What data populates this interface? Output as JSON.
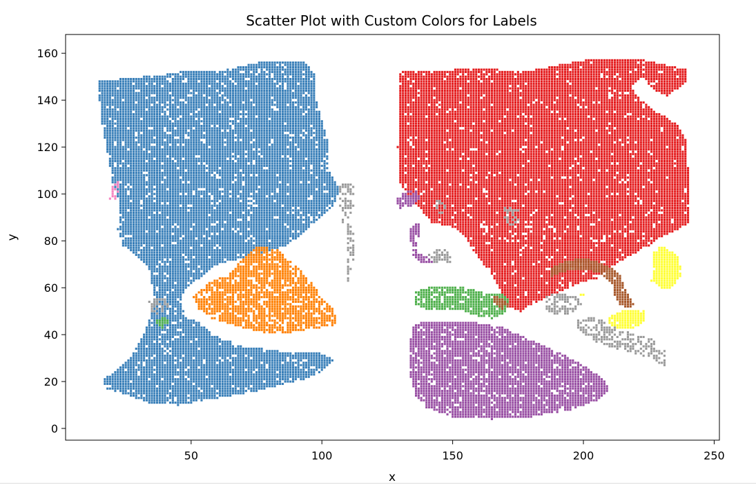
{
  "chart_data": {
    "type": "scatter",
    "title": "Scatter Plot with Custom Colors for Labels",
    "xlabel": "x",
    "ylabel": "y",
    "xlim": [
      2,
      252
    ],
    "ylim": [
      -5,
      168
    ],
    "xticks": [
      50,
      100,
      150,
      200,
      250
    ],
    "yticks": [
      0,
      20,
      40,
      60,
      80,
      100,
      120,
      140,
      160
    ],
    "grid": false,
    "legend": "none",
    "marker_spacing": 1,
    "series": [
      {
        "color": "#377eb8",
        "density": 0.93,
        "regions": [
          [
            [
              14,
              148
            ],
            [
              40,
              151
            ],
            [
              50,
              153
            ],
            [
              60,
              152
            ],
            [
              75,
              156
            ],
            [
              93,
              157
            ],
            [
              98,
              150
            ],
            [
              98,
              140
            ],
            [
              102,
              124
            ],
            [
              103,
              110
            ],
            [
              107,
              102
            ],
            [
              104,
              94
            ],
            [
              98,
              88
            ],
            [
              94,
              84
            ],
            [
              86,
              78
            ],
            [
              74,
              74
            ],
            [
              60,
              70
            ],
            [
              53,
              64
            ],
            [
              48,
              60
            ],
            [
              46,
              54
            ],
            [
              48,
              48
            ],
            [
              54,
              45
            ],
            [
              58,
              40
            ],
            [
              70,
              35
            ],
            [
              85,
              33
            ],
            [
              100,
              32
            ],
            [
              105,
              29
            ],
            [
              100,
              24
            ],
            [
              93,
              21
            ],
            [
              75,
              16
            ],
            [
              60,
              13
            ],
            [
              45,
              10
            ],
            [
              34,
              11
            ],
            [
              24,
              15
            ],
            [
              18,
              17
            ],
            [
              16,
              21
            ],
            [
              22,
              25
            ],
            [
              27,
              30
            ],
            [
              31,
              38
            ],
            [
              34,
              46
            ],
            [
              36,
              55
            ],
            [
              34,
              68
            ],
            [
              29,
              74
            ],
            [
              24,
              78
            ],
            [
              22,
              85
            ],
            [
              23,
              95
            ],
            [
              20,
              105
            ],
            [
              18,
              118
            ],
            [
              16,
              130
            ],
            [
              15,
              140
            ]
          ]
        ]
      },
      {
        "color": "#e41a1c",
        "density": 0.94,
        "regions": [
          [
            [
              130,
              152
            ],
            [
              150,
              153
            ],
            [
              160,
              154
            ],
            [
              176,
              152
            ],
            [
              186,
              154
            ],
            [
              205,
              158
            ],
            [
              220,
              158
            ],
            [
              232,
              155
            ],
            [
              240,
              153
            ],
            [
              239,
              147
            ],
            [
              232,
              142
            ],
            [
              226,
              145
            ],
            [
              223,
              150
            ],
            [
              218,
              146
            ],
            [
              222,
              140
            ],
            [
              228,
              135
            ],
            [
              236,
              130
            ],
            [
              240,
              122
            ],
            [
              240,
              112
            ],
            [
              241,
              96
            ],
            [
              241,
              88
            ],
            [
              236,
              85
            ],
            [
              230,
              82
            ],
            [
              225,
              78
            ],
            [
              220,
              75
            ],
            [
              212,
              70
            ],
            [
              205,
              64
            ],
            [
              198,
              62
            ],
            [
              188,
              57
            ],
            [
              180,
              53
            ],
            [
              176,
              50
            ],
            [
              170,
              53
            ],
            [
              168,
              60
            ],
            [
              165,
              66
            ],
            [
              162,
              70
            ],
            [
              158,
              76
            ],
            [
              155,
              82
            ],
            [
              150,
              86
            ],
            [
              142,
              88
            ],
            [
              136,
              96
            ],
            [
              130,
              104
            ],
            [
              129,
              120
            ],
            [
              130,
              140
            ]
          ]
        ]
      },
      {
        "color": "#ff7f00",
        "density": 0.82,
        "regions": [
          [
            [
              51,
              56
            ],
            [
              55,
              61
            ],
            [
              60,
              64
            ],
            [
              66,
              67
            ],
            [
              70,
              73
            ],
            [
              76,
              78
            ],
            [
              84,
              76
            ],
            [
              90,
              70
            ],
            [
              93,
              66
            ],
            [
              97,
              61
            ],
            [
              100,
              56
            ],
            [
              104,
              52
            ],
            [
              106,
              48
            ],
            [
              105,
              44
            ],
            [
              100,
              43
            ],
            [
              88,
              41
            ],
            [
              78,
              41
            ],
            [
              70,
              43
            ],
            [
              64,
              45
            ],
            [
              58,
              47
            ],
            [
              53,
              51
            ]
          ]
        ]
      },
      {
        "color": "#984ea3",
        "density": 0.9,
        "regions": [
          [
            [
              135,
              44
            ],
            [
              140,
              46
            ],
            [
              150,
              46
            ],
            [
              160,
              45
            ],
            [
              170,
              43
            ],
            [
              180,
              38
            ],
            [
              190,
              33
            ],
            [
              200,
              27
            ],
            [
              208,
              21
            ],
            [
              210,
              16
            ],
            [
              205,
              12
            ],
            [
              195,
              8
            ],
            [
              180,
              5
            ],
            [
              165,
              4
            ],
            [
              150,
              5
            ],
            [
              140,
              9
            ],
            [
              136,
              14
            ],
            [
              134,
              22
            ],
            [
              134,
              30
            ],
            [
              134,
              38
            ]
          ],
          [
            [
              134,
              86
            ],
            [
              137,
              88
            ],
            [
              138,
              83
            ],
            [
              136,
              80
            ],
            [
              137,
              75
            ],
            [
              141,
              73
            ],
            [
              143,
              70
            ],
            [
              138,
              71
            ],
            [
              135,
              74
            ],
            [
              134,
              80
            ]
          ],
          [
            [
              128,
              98
            ],
            [
              132,
              101
            ],
            [
              136,
              102
            ],
            [
              138,
              98
            ],
            [
              134,
              95
            ],
            [
              130,
              94
            ]
          ]
        ]
      },
      {
        "color": "#4daf4a",
        "density": 0.88,
        "regions": [
          [
            [
              135,
              58
            ],
            [
              140,
              60
            ],
            [
              148,
              61
            ],
            [
              156,
              60
            ],
            [
              162,
              58
            ],
            [
              170,
              57
            ],
            [
              172,
              55
            ],
            [
              170,
              49
            ],
            [
              165,
              47
            ],
            [
              160,
              48
            ],
            [
              154,
              50
            ],
            [
              148,
              51
            ],
            [
              140,
              51
            ],
            [
              136,
              53
            ]
          ],
          [
            [
              36,
              46
            ],
            [
              40,
              48
            ],
            [
              42,
              45
            ],
            [
              39,
              43
            ]
          ]
        ]
      },
      {
        "color": "#a65628",
        "density": 0.95,
        "regions": [
          [
            [
              187,
              68
            ],
            [
              192,
              71
            ],
            [
              200,
              73
            ],
            [
              206,
              71
            ],
            [
              210,
              69
            ],
            [
              214,
              66
            ],
            [
              216,
              60
            ],
            [
              218,
              56
            ],
            [
              220,
              54
            ],
            [
              218,
              51
            ],
            [
              214,
              53
            ],
            [
              212,
              57
            ],
            [
              211,
              62
            ],
            [
              207,
              66
            ],
            [
              200,
              68
            ],
            [
              193,
              67
            ],
            [
              188,
              65
            ]
          ],
          [
            [
              165,
              57
            ],
            [
              170,
              55
            ],
            [
              172,
              52
            ],
            [
              169,
              51
            ],
            [
              166,
              54
            ]
          ]
        ]
      },
      {
        "color": "#ffff33",
        "density": 0.95,
        "regions": [
          [
            [
              226,
              75
            ],
            [
              230,
              78
            ],
            [
              236,
              74
            ],
            [
              238,
              66
            ],
            [
              234,
              60
            ],
            [
              230,
              60
            ],
            [
              226,
              63
            ],
            [
              227,
              70
            ]
          ],
          [
            [
              210,
              48
            ],
            [
              214,
              50
            ],
            [
              220,
              51
            ],
            [
              224,
              50
            ],
            [
              224,
              46
            ],
            [
              220,
              43
            ],
            [
              212,
              43
            ],
            [
              210,
              45
            ]
          ],
          [
            [
              199,
              57
            ],
            [
              200,
              58
            ],
            [
              201,
              57
            ],
            [
              200,
              56
            ]
          ]
        ]
      },
      {
        "color": "#f781bf",
        "density": 0.7,
        "regions": [
          [
            [
              19,
              98
            ],
            [
              20,
              103
            ],
            [
              21,
              107
            ],
            [
              23,
              105
            ],
            [
              23,
              100
            ],
            [
              21,
              97
            ]
          ]
        ]
      },
      {
        "color": "#999999",
        "density": 0.55,
        "regions": [
          [
            [
              106,
              105
            ],
            [
              112,
              105
            ],
            [
              113,
              98
            ],
            [
              111,
              90
            ],
            [
              108,
              88
            ],
            [
              106,
              92
            ],
            [
              107,
              98
            ]
          ],
          [
            [
              110,
              88
            ],
            [
              113,
              84
            ],
            [
              112,
              70
            ],
            [
              110,
              62
            ],
            [
              109,
              70
            ],
            [
              110,
              80
            ]
          ],
          [
            [
              170,
              95
            ],
            [
              176,
              93
            ],
            [
              176,
              87
            ],
            [
              172,
              86
            ],
            [
              170,
              90
            ]
          ],
          [
            [
              205,
              48
            ],
            [
              210,
              44
            ],
            [
              220,
              40
            ],
            [
              228,
              38
            ],
            [
              232,
              34
            ],
            [
              232,
              26
            ],
            [
              226,
              30
            ],
            [
              220,
              32
            ],
            [
              212,
              34
            ],
            [
              205,
              37
            ],
            [
              198,
              42
            ],
            [
              197,
              46
            ]
          ],
          [
            [
              185,
              56
            ],
            [
              190,
              58
            ],
            [
              198,
              56
            ],
            [
              200,
              52
            ],
            [
              192,
              48
            ],
            [
              186,
              50
            ]
          ],
          [
            [
              140,
              75
            ],
            [
              147,
              77
            ],
            [
              152,
              73
            ],
            [
              148,
              70
            ],
            [
              142,
              71
            ]
          ],
          [
            [
              144,
              98
            ],
            [
              148,
              96
            ],
            [
              147,
              92
            ],
            [
              144,
              92
            ]
          ],
          [
            [
              34,
              55
            ],
            [
              40,
              56
            ],
            [
              42,
              52
            ],
            [
              38,
              48
            ],
            [
              34,
              50
            ]
          ]
        ]
      }
    ]
  }
}
